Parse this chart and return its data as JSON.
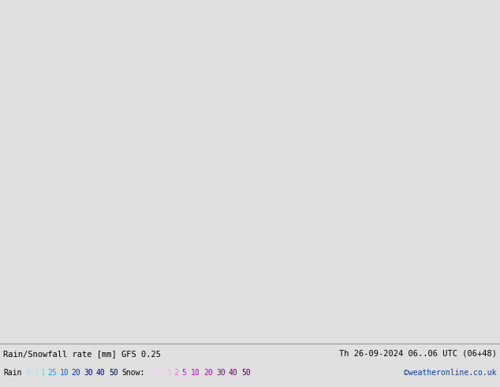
{
  "title_left": "Rain/Snowfall rate [mm] GFS 0.25",
  "title_right": "Th 26-09-2024 06..06 UTC (06+48)",
  "copyright": "©weatheronline.co.uk",
  "figsize": [
    6.34,
    4.9
  ],
  "dpi": 100,
  "map_extent": [
    -60,
    50,
    25,
    75
  ],
  "ocean_color": "#d8d8d8",
  "land_color": "#c8e8b0",
  "border_color": "#888888",
  "coastline_color": "#888888",
  "bottom_bg": "#e0e0e0",
  "rain_legend": {
    "label": "Rain",
    "values": [
      "0.1",
      "1",
      "25",
      "10",
      "20",
      "30",
      "40",
      "50"
    ],
    "colors": [
      "#aaeeff",
      "#55ddff",
      "#00aaff",
      "#0066dd",
      "#0033bb",
      "#0000aa",
      "#000088",
      "#000055"
    ]
  },
  "snow_legend": {
    "label": "Snow:",
    "values": [
      "0.1",
      "1",
      "2",
      "5",
      "10",
      "20",
      "30",
      "40",
      "50"
    ],
    "colors": [
      "#ffccff",
      "#ff99ee",
      "#ff66ff",
      "#ee00ee",
      "#cc00cc",
      "#aa00aa",
      "#880088",
      "#660066",
      "#440044"
    ]
  }
}
